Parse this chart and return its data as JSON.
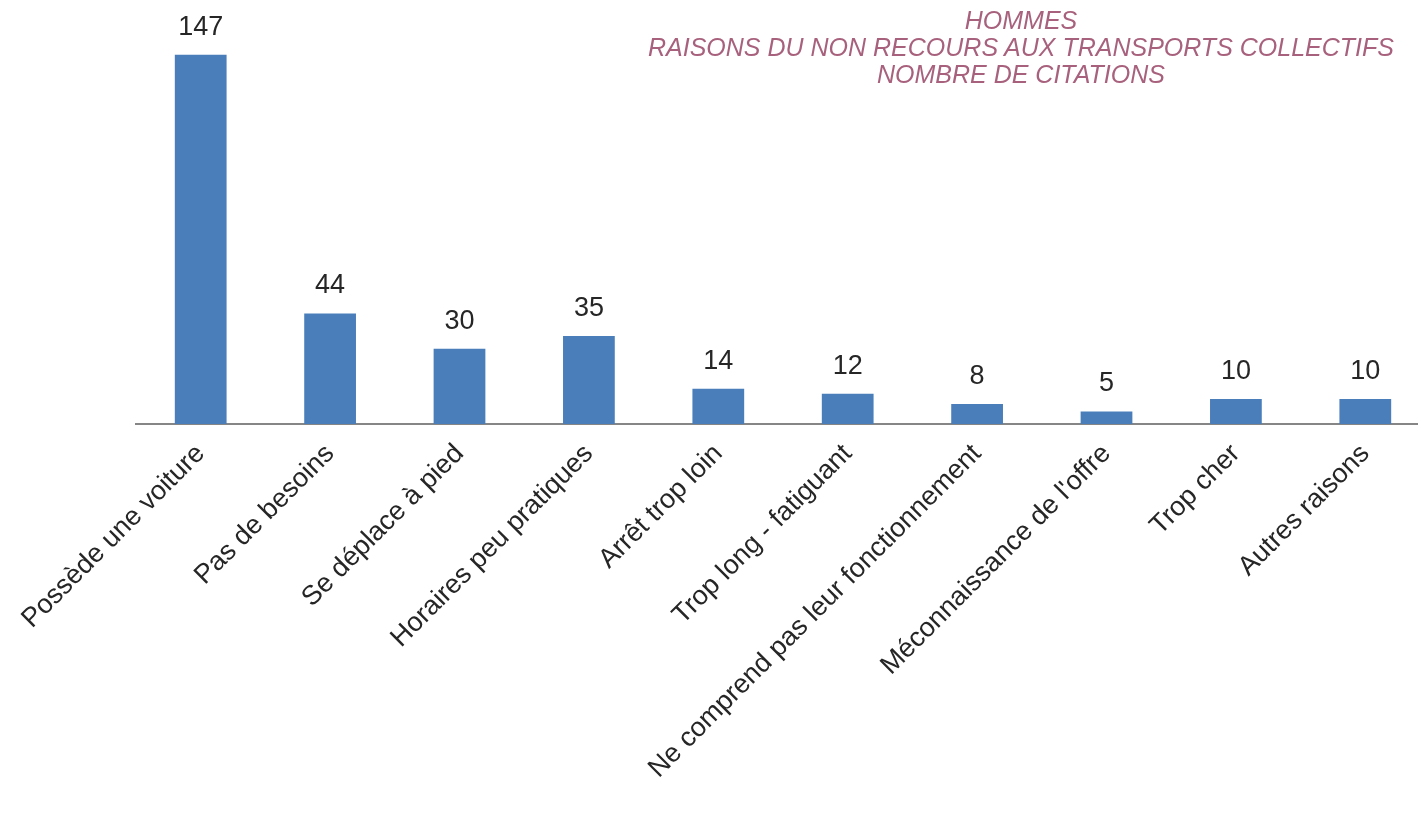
{
  "chart_data": {
    "type": "bar",
    "title": "HOMMES\nRAISONS DU NON RECOURS AUX TRANSPORTS COLLECTIFS\nNOMBRE DE CITATIONS",
    "categories": [
      "Possède une voiture",
      "Pas de besoins",
      "Se déplace à pied",
      "Horaires peu pratiques",
      "Arrêt trop loin",
      "Trop long - fatiguant",
      "Ne comprend pas leur fonctionnement",
      "Méconnaissance de l'offre",
      "Trop cher",
      "Autres raisons"
    ],
    "values": [
      147,
      44,
      30,
      35,
      14,
      12,
      8,
      5,
      10,
      10
    ],
    "color": "#4a7ebb",
    "data_labels": true
  }
}
